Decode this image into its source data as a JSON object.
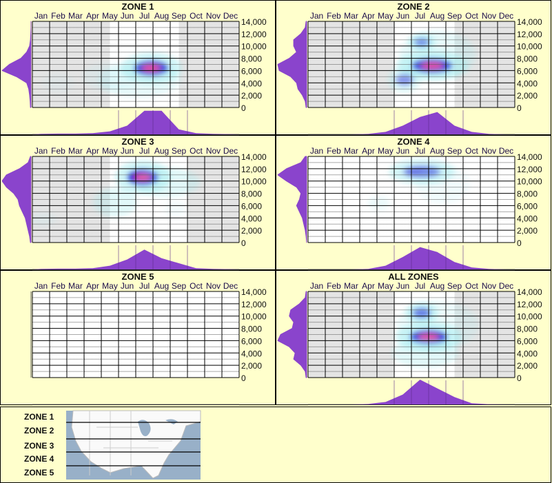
{
  "colors": {
    "background": "#ffffcc",
    "inactive": "#e4e4e4",
    "active": "#ffffff",
    "density": "#8a44cc",
    "heat_low": "#a8ecf0",
    "heat_mid": "#1414d8",
    "heat_high": "#ff1a80"
  },
  "chart_data": [
    {
      "type": "heatmap",
      "title": "ZONE 1",
      "x_ticks": [
        "Jan",
        "Feb",
        "Mar",
        "Apr",
        "May",
        "Jun",
        "Jul",
        "Aug",
        "Sep",
        "Oct",
        "Nov",
        "Dec"
      ],
      "y_ticks": [
        "14,000",
        "12,000",
        "10,000",
        "8,000",
        "6,000",
        "4,000",
        "2,000",
        "0"
      ],
      "ylim": [
        0,
        14000
      ],
      "active_months": [
        4.5,
        8.5
      ],
      "hotspots": [
        {
          "month": 6.9,
          "elev": 6400,
          "intensity": 1.0,
          "sx": 1.1,
          "sy": 1600
        },
        {
          "month": 6.2,
          "elev": 4500,
          "intensity": 0.25,
          "sx": 1.5,
          "sy": 1800
        },
        {
          "month": 4.5,
          "elev": 5000,
          "intensity": 0.12,
          "sx": 1,
          "sy": 1500
        },
        {
          "month": 1.5,
          "elev": 4000,
          "intensity": 0.08,
          "sx": 0.6,
          "sy": 1000
        }
      ],
      "elev_profile": [
        0.02,
        0.03,
        0.05,
        0.08,
        0.15,
        0.5,
        1,
        0.75,
        0.35,
        0.15,
        0.05,
        0.02,
        0.01,
        0,
        0
      ],
      "month_profile": [
        0.02,
        0.03,
        0.03,
        0.05,
        0.12,
        0.35,
        0.95,
        0.95,
        0.2,
        0.05,
        0.02,
        0.01
      ]
    },
    {
      "type": "heatmap",
      "title": "ZONE 2",
      "x_ticks": [
        "Jan",
        "Feb",
        "Mar",
        "Apr",
        "May",
        "Jun",
        "Jul",
        "Aug",
        "Sep",
        "Oct",
        "Nov",
        "Dec"
      ],
      "y_ticks": [
        "14,000",
        "12,000",
        "10,000",
        "8,000",
        "6,000",
        "4,000",
        "2,000",
        "0"
      ],
      "ylim": [
        0,
        14000
      ],
      "active_months": [
        5,
        8.5
      ],
      "hotspots": [
        {
          "month": 7.2,
          "elev": 6800,
          "intensity": 1.0,
          "sx": 1.3,
          "sy": 1500
        },
        {
          "month": 6.6,
          "elev": 10600,
          "intensity": 0.5,
          "sx": 0.5,
          "sy": 900
        },
        {
          "month": 5.6,
          "elev": 4500,
          "intensity": 0.35,
          "sx": 0.6,
          "sy": 1300
        },
        {
          "month": 7.5,
          "elev": 8500,
          "intensity": 0.25,
          "sx": 1.4,
          "sy": 2500
        }
      ],
      "elev_profile": [
        0.02,
        0.05,
        0.15,
        0.3,
        0.35,
        0.55,
        0.95,
        1,
        0.6,
        0.35,
        0.45,
        0.45,
        0.2,
        0.05,
        0.02
      ],
      "month_profile": [
        0,
        0,
        0,
        0.02,
        0.1,
        0.35,
        0.7,
        0.9,
        0.35,
        0.1,
        0.02,
        0
      ]
    },
    {
      "type": "heatmap",
      "title": "ZONE 3",
      "x_ticks": [
        "Jan",
        "Feb",
        "Mar",
        "Apr",
        "May",
        "Jun",
        "Jul",
        "Aug",
        "Sep",
        "Oct",
        "Nov",
        "Dec"
      ],
      "y_ticks": [
        "14,000",
        "12,000",
        "10,000",
        "8,000",
        "6,000",
        "4,000",
        "2,000",
        "0"
      ],
      "ylim": [
        0,
        14000
      ],
      "active_months": [
        4.5,
        9
      ],
      "hotspots": [
        {
          "month": 6.4,
          "elev": 10600,
          "intensity": 1.0,
          "sx": 1.0,
          "sy": 1700
        },
        {
          "month": 7.8,
          "elev": 9800,
          "intensity": 0.3,
          "sx": 1.2,
          "sy": 1500
        },
        {
          "month": 4.8,
          "elev": 6500,
          "intensity": 0.3,
          "sx": 0.8,
          "sy": 1500
        },
        {
          "month": 0.6,
          "elev": 3800,
          "intensity": 0.12,
          "sx": 0.5,
          "sy": 700
        },
        {
          "month": 8.3,
          "elev": 5500,
          "intensity": 0.12,
          "sx": 0.4,
          "sy": 800
        }
      ],
      "elev_profile": [
        0.02,
        0.05,
        0.1,
        0.15,
        0.2,
        0.3,
        0.4,
        0.45,
        0.6,
        0.85,
        1,
        0.85,
        0.4,
        0.1,
        0.02
      ],
      "month_profile": [
        0.02,
        0.03,
        0.03,
        0.05,
        0.15,
        0.4,
        0.8,
        0.45,
        0.25,
        0.05,
        0.02,
        0.01
      ]
    },
    {
      "type": "heatmap",
      "title": "ZONE 4",
      "x_ticks": [
        "Jan",
        "Feb",
        "Mar",
        "Apr",
        "May",
        "Jun",
        "Jul",
        "Aug",
        "Sep",
        "Oct",
        "Nov",
        "Dec"
      ],
      "y_ticks": [
        "14,000",
        "12,000",
        "10,000",
        "8,000",
        "6,000",
        "4,000",
        "2,000",
        "0"
      ],
      "ylim": [
        0,
        14000
      ],
      "active_months": [
        0,
        12
      ],
      "hotspots": [
        {
          "month": 6.6,
          "elev": 11500,
          "intensity": 0.45,
          "sx": 1.2,
          "sy": 1300
        },
        {
          "month": 4.1,
          "elev": 6400,
          "intensity": 0.2,
          "sx": 0.4,
          "sy": 700
        },
        {
          "month": 7.8,
          "elev": 9500,
          "intensity": 0.15,
          "sx": 1,
          "sy": 2000
        }
      ],
      "elev_profile": [
        0,
        0.02,
        0.05,
        0.1,
        0.15,
        0.25,
        0.35,
        0.25,
        0.2,
        0.35,
        0.7,
        1,
        0.7,
        0.2,
        0.05
      ],
      "month_profile": [
        0,
        0,
        0,
        0.02,
        0.15,
        0.5,
        0.9,
        0.7,
        0.3,
        0.08,
        0.02,
        0
      ]
    },
    {
      "type": "heatmap",
      "title": "ZONE 5",
      "x_ticks": [
        "Jan",
        "Feb",
        "Mar",
        "Apr",
        "May",
        "Jun",
        "Jul",
        "Aug",
        "Sep",
        "Oct",
        "Nov",
        "Dec"
      ],
      "y_ticks": [
        "14,000",
        "12,000",
        "10,000",
        "8,000",
        "6,000",
        "4,000",
        "2,000",
        "0"
      ],
      "ylim": [
        0,
        14000
      ],
      "active_months": [
        0,
        12
      ],
      "hotspots": [],
      "elev_profile": [],
      "month_profile": []
    },
    {
      "type": "heatmap",
      "title": "ALL ZONES",
      "x_ticks": [
        "Jan",
        "Feb",
        "Mar",
        "Apr",
        "May",
        "Jun",
        "Jul",
        "Aug",
        "Sep",
        "Oct",
        "Nov",
        "Dec"
      ],
      "y_ticks": [
        "14,000",
        "12,000",
        "10,000",
        "8,000",
        "6,000",
        "4,000",
        "2,000",
        "0"
      ],
      "ylim": [
        0,
        14000
      ],
      "active_months": [
        5,
        8.5
      ],
      "hotspots": [
        {
          "month": 7.0,
          "elev": 6600,
          "intensity": 1.0,
          "sx": 1.2,
          "sy": 1500
        },
        {
          "month": 6.6,
          "elev": 10500,
          "intensity": 0.55,
          "sx": 0.6,
          "sy": 1100
        },
        {
          "month": 6.8,
          "elev": 4000,
          "intensity": 0.3,
          "sx": 1.2,
          "sy": 1500
        },
        {
          "month": 7.5,
          "elev": 8500,
          "intensity": 0.2,
          "sx": 1.5,
          "sy": 2500
        }
      ],
      "elev_profile": [
        0.02,
        0.05,
        0.2,
        0.45,
        0.4,
        0.6,
        1,
        0.9,
        0.5,
        0.45,
        0.6,
        0.55,
        0.25,
        0.05,
        0.02
      ],
      "month_profile": [
        0,
        0,
        0,
        0.02,
        0.1,
        0.4,
        1,
        0.65,
        0.3,
        0.05,
        0.01,
        0
      ]
    }
  ],
  "legend": {
    "zones": [
      "ZONE 1",
      "ZONE 2",
      "ZONE 3",
      "ZONE 4",
      "ZONE 5"
    ]
  }
}
